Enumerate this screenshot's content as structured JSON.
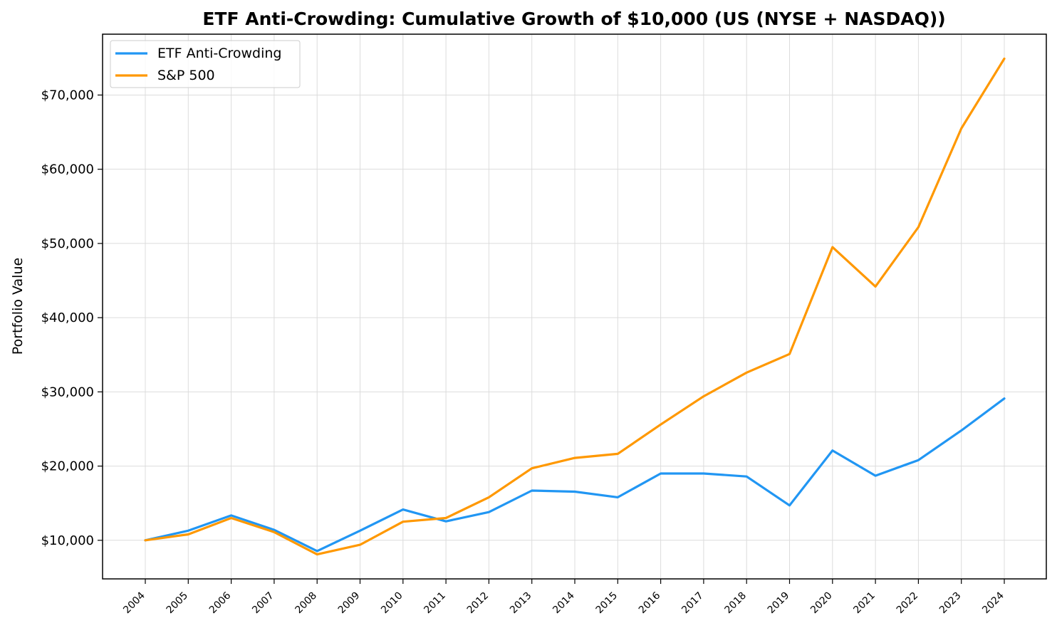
{
  "chart_data": {
    "type": "line",
    "title": "ETF Anti-Crowding: Cumulative Growth of $10,000 (US (NYSE + NASDAQ))",
    "xlabel": "",
    "ylabel": "Portfolio Value",
    "x": [
      "2004",
      "2005",
      "2006",
      "2007",
      "2008",
      "2009",
      "2010",
      "2011",
      "2012",
      "2013",
      "2014",
      "2015",
      "2016",
      "2017",
      "2018",
      "2019",
      "2020",
      "2021",
      "2022",
      "2023",
      "2024"
    ],
    "series": [
      {
        "name": "ETF Anti-Crowding",
        "color": "#2196F3",
        "values": [
          10000,
          11300,
          13350,
          11400,
          8550,
          11300,
          14150,
          12550,
          13800,
          16700,
          16550,
          15800,
          19000,
          19000,
          18600,
          14700,
          22100,
          18700,
          20800,
          24800,
          29100
        ]
      },
      {
        "name": "S&P 500",
        "color": "#FF9800",
        "values": [
          10000,
          10800,
          13000,
          11100,
          8100,
          9400,
          12500,
          13000,
          15800,
          19700,
          21100,
          21650,
          25600,
          29400,
          32600,
          35100,
          49500,
          44200,
          52200,
          65500,
          74900
        ]
      }
    ],
    "yticks": [
      10000,
      20000,
      30000,
      40000,
      50000,
      60000,
      70000
    ],
    "ytick_labels": [
      "$10,000",
      "$20,000",
      "$30,000",
      "$40,000",
      "$50,000",
      "$60,000",
      "$70,000"
    ],
    "ylim": [
      4800,
      78200
    ],
    "grid": true,
    "legend_position": "top-left"
  }
}
